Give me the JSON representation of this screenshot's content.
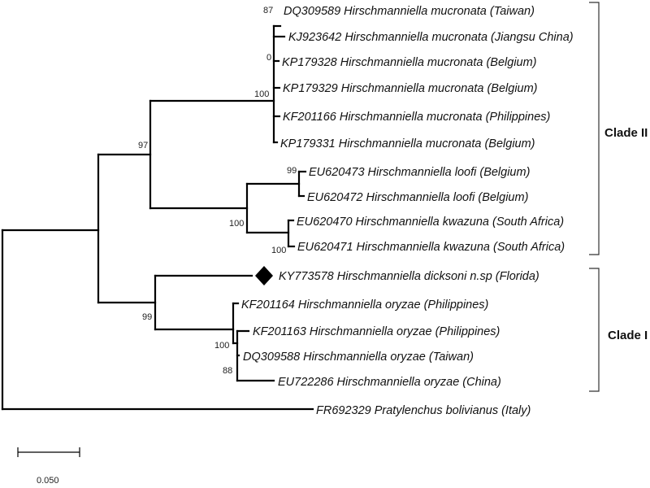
{
  "taxa": [
    "DQ309589 Hirschmanniella mucronata (Taiwan)",
    "KJ923642 Hirschmanniella mucronata (Jiangsu China)",
    "KP179328 Hirschmanniella mucronata (Belgium)",
    "KP179329 Hirschmanniella mucronata (Belgium)",
    "KF201166 Hirschmanniella mucronata (Philippines)",
    "KP179331 Hirschmanniella mucronata (Belgium)",
    "EU620473 Hirschmanniella loofi (Belgium)",
    "EU620472 Hirschmanniella loofi (Belgium)",
    "EU620470 Hirschmanniella kwazuna (South Africa)",
    "EU620471 Hirschmanniella kwazuna (South Africa)",
    "KY773578 Hirschmanniella dicksoni n.sp (Florida)",
    "KF201164 Hirschmanniella oryzae (Philippines)",
    "KF201163 Hirschmanniella oryzae (Philippines)",
    "DQ309588 Hirschmanniella oryzae (Taiwan)",
    "EU722286 Hirschmanniella oryzae (China)",
    "FR692329 Pratylenchus bolivianus (Italy)"
  ],
  "support_values": [
    "87",
    "0",
    "100",
    "97",
    "99",
    "100",
    "100",
    "99",
    "100",
    "88"
  ],
  "clades": [
    "Clade II",
    "Clade I"
  ],
  "scale_bar": {
    "label": "0.050"
  },
  "highlight": {
    "taxon": "KY773578 Hirschmanniella dicksoni n.sp (Florida)",
    "marker": "diamond-icon"
  }
}
